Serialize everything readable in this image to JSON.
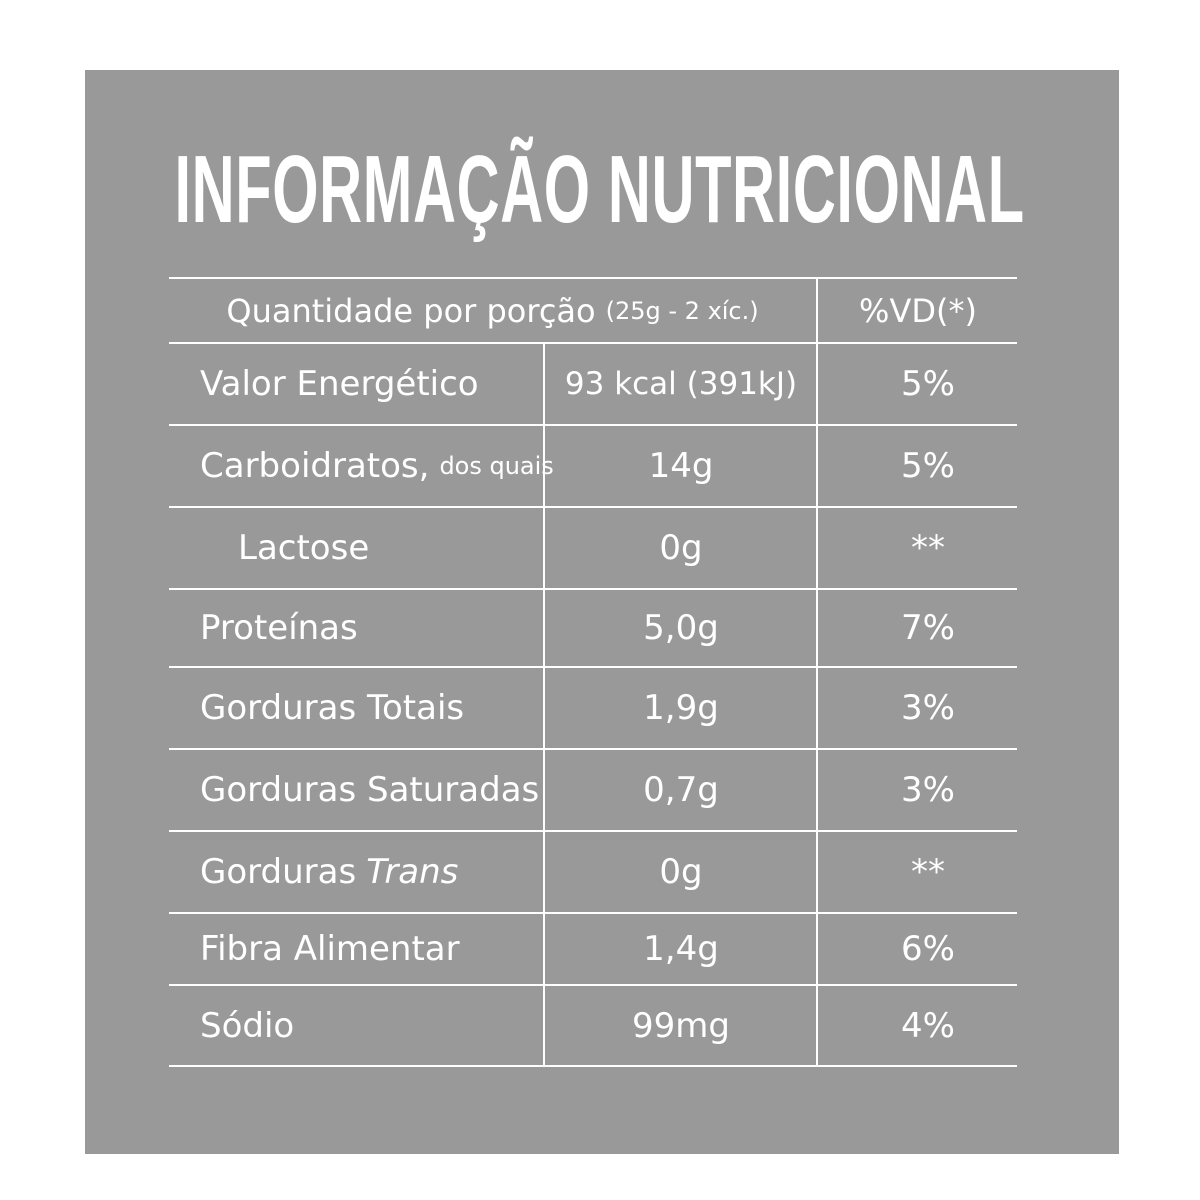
{
  "title": "INFORMAÇÃO NUTRICIONAL",
  "header": {
    "portion_label": "Quantidade por porção",
    "portion_size": "(25g - 2 xíc.)",
    "vd_label": "%VD(*)"
  },
  "rows": [
    {
      "name": "Valor Energético",
      "qty": "93 kcal (391kJ)",
      "vd": "5%"
    },
    {
      "name": "Carboidratos,",
      "suffix": "dos quais",
      "qty": "14g",
      "vd": "5%"
    },
    {
      "name": "Lactose",
      "qty": "0g",
      "vd": "**"
    },
    {
      "name": "Proteínas",
      "qty": "5,0g",
      "vd": "7%"
    },
    {
      "name": "Gorduras Totais",
      "qty": "1,9g",
      "vd": "3%"
    },
    {
      "name": "Gorduras Saturadas",
      "qty": "0,7g",
      "vd": "3%"
    },
    {
      "name": "Gorduras",
      "suffix": "Trans",
      "qty": "0g",
      "vd": "**"
    },
    {
      "name": "Fibra Alimentar",
      "qty": "1,4g",
      "vd": "6%"
    },
    {
      "name": "Sódio",
      "qty": "99mg",
      "vd": "4%"
    }
  ],
  "colors": {
    "panel": "#999999",
    "text": "#ffffff",
    "background": "#ffffff"
  }
}
